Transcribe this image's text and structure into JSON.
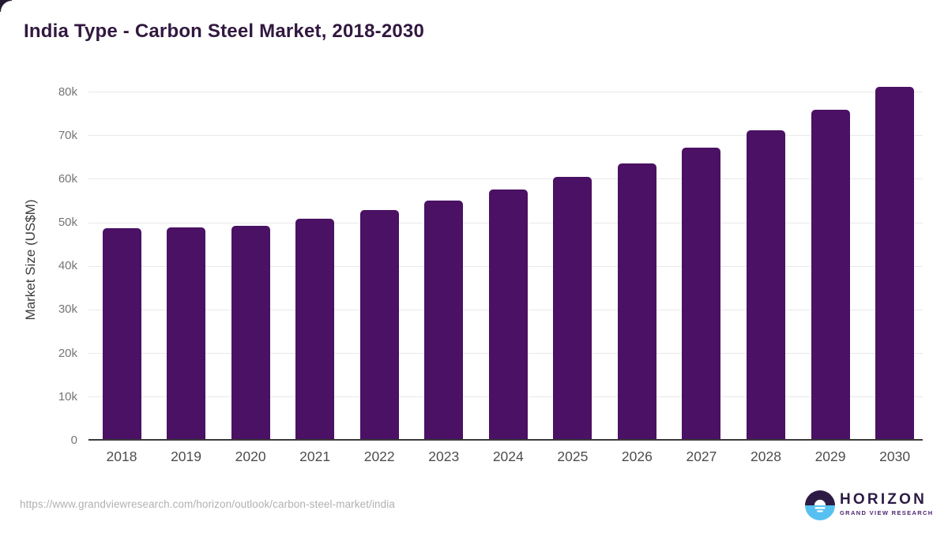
{
  "page": {
    "title": "India Type - Carbon Steel Market, 2018-2030",
    "source_url": "https://www.grandviewresearch.com/horizon/outlook/carbon-steel-market/india"
  },
  "logo": {
    "name": "HORIZON",
    "subtitle": "GRAND VIEW RESEARCH"
  },
  "chart_data": {
    "type": "bar",
    "title": "India Type - Carbon Steel Market, 2018-2030",
    "categories": [
      "2018",
      "2019",
      "2020",
      "2021",
      "2022",
      "2023",
      "2024",
      "2025",
      "2026",
      "2027",
      "2028",
      "2029",
      "2030"
    ],
    "values": [
      48300,
      48600,
      48900,
      50600,
      52500,
      54700,
      57200,
      60100,
      63200,
      66800,
      70900,
      75600,
      80900
    ],
    "xlabel": "",
    "ylabel": "Market Size (US$M)",
    "ylim": [
      0,
      83000
    ],
    "yticks": {
      "values": [
        0,
        10000,
        20000,
        30000,
        40000,
        50000,
        60000,
        70000,
        80000
      ],
      "labels": [
        "0",
        "10k",
        "20k",
        "30k",
        "40k",
        "50k",
        "60k",
        "70k",
        "80k"
      ]
    },
    "grid": "horizontal",
    "legend": "none",
    "bar_color": "#4a1164"
  },
  "colors": {
    "bar": "#4a1164",
    "title_text": "#311840",
    "axis_tick_text": "#757575",
    "x_label_text": "#4d4d4d",
    "gridline": "#e9e9e9",
    "baseline": "#3a3a3a",
    "url_text": "#b1b1b1",
    "logo_dark": "#2d1b45",
    "logo_blue": "#56c1f1"
  }
}
